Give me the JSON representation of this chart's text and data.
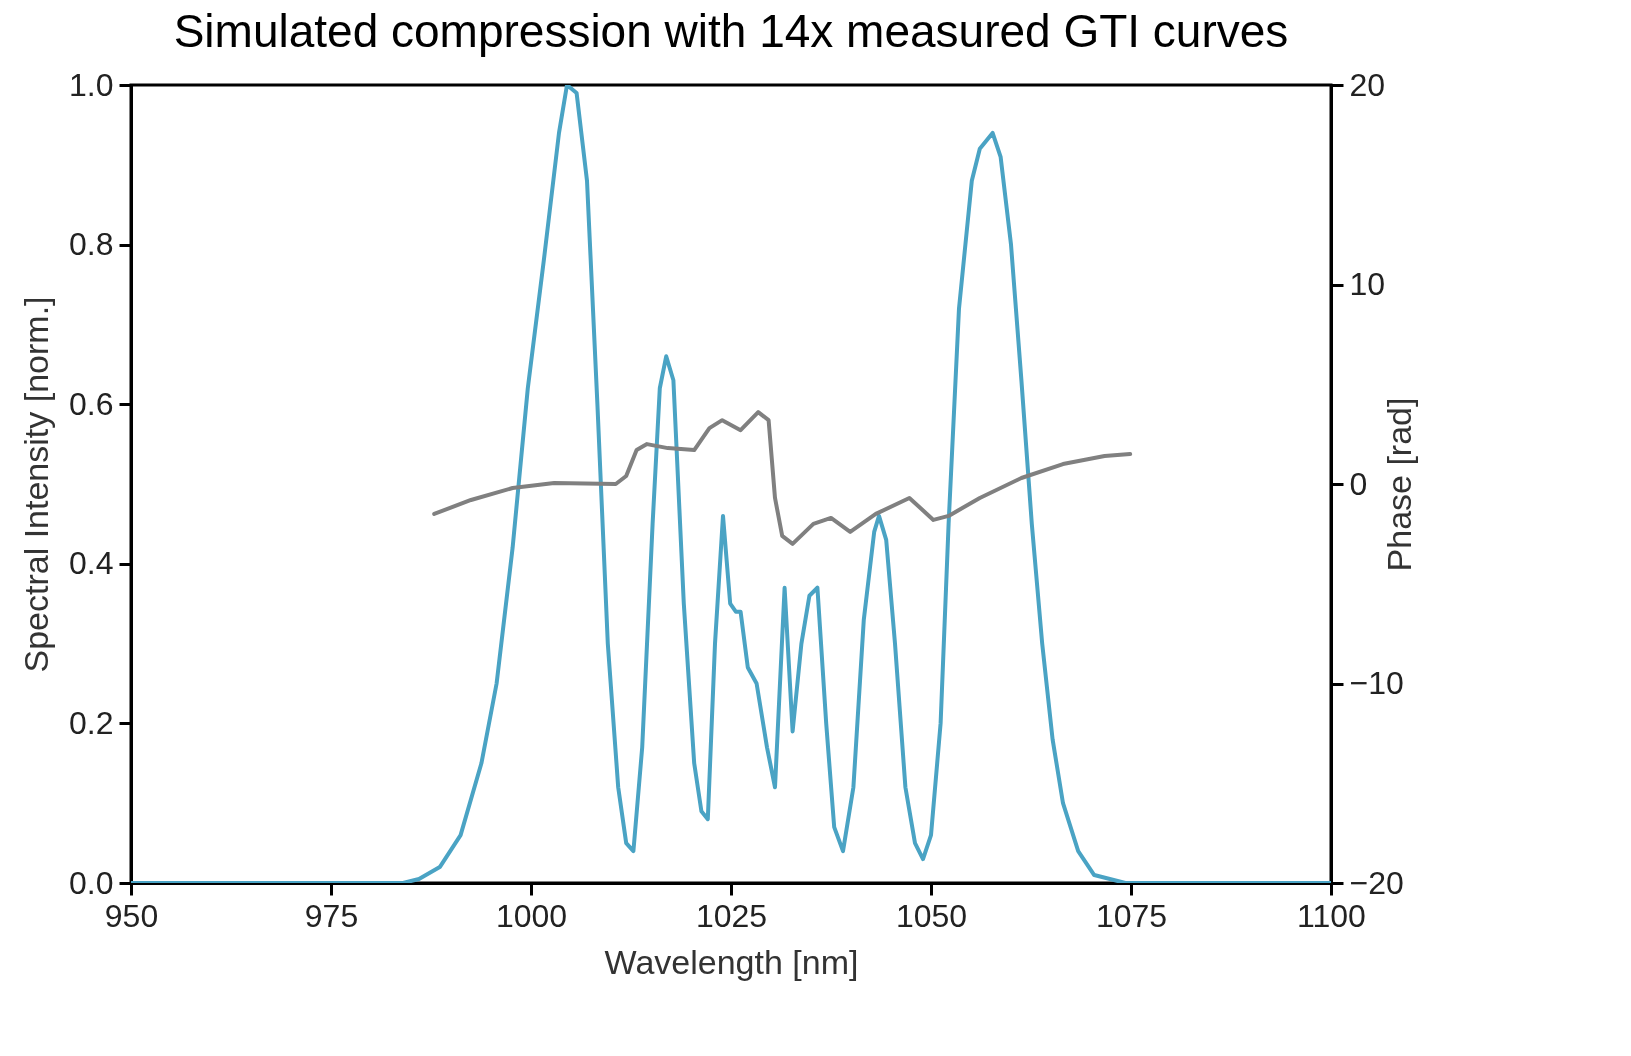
{
  "chart_data": {
    "type": "line",
    "title": "Simulated compression with 14x measured GTI curves",
    "xlabel": "Wavelength [nm]",
    "ylabel": "Spectral Intensity [norm.]",
    "y2label": "Phase [rad]",
    "xlim": [
      950,
      1100
    ],
    "xticks": [
      950,
      975,
      1000,
      1025,
      1050,
      1075,
      1100
    ],
    "ylim": [
      0,
      1
    ],
    "yticks": [
      {
        "value": 0,
        "label": "0.0"
      },
      {
        "value": 0.2,
        "label": "0.2"
      },
      {
        "value": 0.4,
        "label": "0.4"
      },
      {
        "value": 0.6,
        "label": "0.6"
      },
      {
        "value": 0.8,
        "label": "0.8"
      },
      {
        "value": 1,
        "label": "1.0"
      }
    ],
    "y2lim": [
      -20,
      20
    ],
    "y2ticks": [
      {
        "value": -20,
        "label": "−20"
      },
      {
        "value": -10,
        "label": "−10"
      },
      0,
      10,
      20
    ],
    "grid": false,
    "marker": "none",
    "line_style": "solid",
    "series": [
      {
        "color": "#4aa3c4",
        "x": [
          950,
          970,
          984,
          986,
          988.6,
          991.2,
          993.8,
          995.7,
          997.7,
          999.6,
          1001.6,
          1003.5,
          1004.5,
          1005.7,
          1007,
          1008.3,
          1009.6,
          1010.9,
          1011.9,
          1012.8,
          1013.9,
          1015.2,
          1016.1,
          1016.9,
          1017.8,
          1019.1,
          1020.4,
          1021.3,
          1022.1,
          1023,
          1024,
          1024.9,
          1025.6,
          1026.2,
          1027.1,
          1028.2,
          1029.5,
          1030.5,
          1031.7,
          1032.7,
          1033.8,
          1034.8,
          1035.8,
          1036.9,
          1037.9,
          1039,
          1040.3,
          1041.6,
          1042.9,
          1043.5,
          1044.4,
          1045.5,
          1046.8,
          1048,
          1049,
          1050,
          1051.2,
          1052.2,
          1053.5,
          1055.1,
          1056.1,
          1057.7,
          1058.7,
          1060,
          1061.3,
          1062.6,
          1063.9,
          1065.2,
          1066.5,
          1068.4,
          1070.4,
          1074.3,
          1085,
          1100
        ],
        "values": [
          0,
          0,
          0,
          0.005,
          0.02,
          0.06,
          0.15,
          0.25,
          0.42,
          0.62,
          0.78,
          0.94,
          1,
          0.99,
          0.88,
          0.6,
          0.3,
          0.12,
          0.05,
          0.04,
          0.17,
          0.45,
          0.62,
          0.66,
          0.63,
          0.35,
          0.15,
          0.09,
          0.08,
          0.3,
          0.46,
          0.35,
          0.34,
          0.34,
          0.27,
          0.25,
          0.17,
          0.12,
          0.37,
          0.19,
          0.3,
          0.36,
          0.37,
          0.2,
          0.07,
          0.04,
          0.12,
          0.33,
          0.44,
          0.46,
          0.43,
          0.3,
          0.12,
          0.05,
          0.03,
          0.06,
          0.2,
          0.45,
          0.72,
          0.88,
          0.92,
          0.94,
          0.91,
          0.8,
          0.63,
          0.45,
          0.3,
          0.18,
          0.1,
          0.04,
          0.01,
          0,
          0,
          0
        ]
      },
      {
        "color": "#808080",
        "axis": "y2",
        "x": [
          987.9,
          992.5,
          997.7,
          1002.9,
          1010.6,
          1011.9,
          1013.2,
          1014.5,
          1017.1,
          1020.4,
          1022.3,
          1023.9,
          1026.2,
          1028.4,
          1029.7,
          1030.5,
          1031.4,
          1032.7,
          1035.3,
          1037.5,
          1039.9,
          1043.1,
          1047.3,
          1050.3,
          1052.2,
          1056.1,
          1061.3,
          1066.5,
          1071.7,
          1074.9
        ],
        "values": [
          -1.5,
          -0.8,
          -0.2,
          0.05,
          0,
          0.4,
          1.7,
          2,
          1.8,
          1.7,
          2.8,
          3.2,
          2.7,
          3.6,
          3.2,
          -0.7,
          -2.6,
          -3,
          -2,
          -1.7,
          -2.4,
          -1.5,
          -0.7,
          -1.8,
          -1.6,
          -0.7,
          0.3,
          1,
          1.4,
          1.5
        ]
      }
    ]
  }
}
